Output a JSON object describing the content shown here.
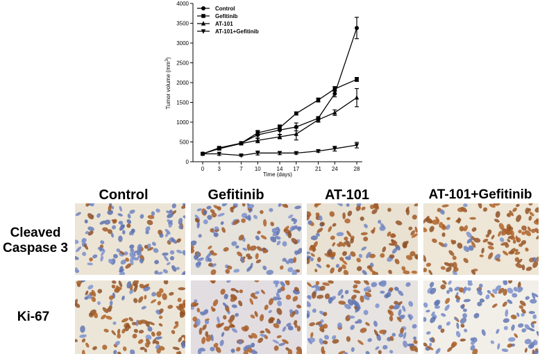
{
  "chart_data": {
    "type": "line",
    "xlabel": "Time (days)",
    "ylabel": "Tumor volume (mm",
    "ylabel_sup": "3",
    "ylabel_end": ")",
    "x": [
      0,
      3,
      7,
      10,
      14,
      17,
      21,
      24,
      28
    ],
    "xticks": [
      "0",
      "3",
      "7",
      "10",
      "14",
      "17",
      "21",
      "24",
      "28"
    ],
    "ylim": [
      0,
      4000
    ],
    "yticks": [
      "0",
      "500",
      "1000",
      "1500",
      "2000",
      "2500",
      "3000",
      "3500",
      "4000"
    ],
    "ytick_values": [
      0,
      500,
      1000,
      1500,
      2000,
      2500,
      3000,
      3500,
      4000
    ],
    "legend_position": "top-left",
    "series": [
      {
        "name": "Control",
        "marker": "circle",
        "values": [
          200,
          340,
          470,
          680,
          800,
          880,
          1100,
          1720,
          3380
        ],
        "errors": [
          15,
          40,
          30,
          90,
          110,
          100,
          40,
          80,
          270
        ]
      },
      {
        "name": "Gefitinib",
        "marker": "square",
        "values": [
          200,
          350,
          470,
          730,
          860,
          1220,
          1560,
          1840,
          2080
        ],
        "errors": [
          15,
          30,
          30,
          60,
          70,
          40,
          50,
          60,
          50
        ]
      },
      {
        "name": "AT-101",
        "marker": "triangle-up",
        "values": [
          200,
          330,
          460,
          540,
          630,
          700,
          1060,
          1240,
          1620
        ],
        "errors": [
          15,
          30,
          30,
          60,
          50,
          150,
          60,
          70,
          230
        ]
      },
      {
        "name": "AT-101+Gefitinib",
        "marker": "triangle-down",
        "values": [
          200,
          200,
          160,
          220,
          220,
          220,
          270,
          330,
          420
        ],
        "errors": [
          15,
          40,
          20,
          50,
          40,
          30,
          30,
          60,
          70
        ]
      }
    ]
  },
  "histology": {
    "columns": [
      "Control",
      "Gefitinib",
      "AT-101",
      "AT-101+Gefitinib"
    ],
    "rows": [
      {
        "line1": "Cleaved",
        "line2": "Caspase 3"
      },
      {
        "line1": "Ki-67",
        "line2": ""
      }
    ]
  }
}
